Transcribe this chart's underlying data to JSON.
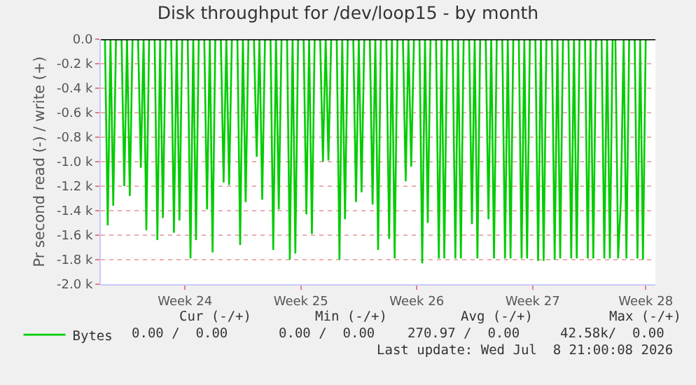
{
  "chart_data": {
    "type": "line",
    "title": "Disk throughput for /dev/loop15 - by month",
    "ylabel": "Pr second read (-) / write (+)",
    "categories": [
      null,
      null,
      null,
      null,
      null,
      null,
      null,
      null,
      null,
      null,
      null,
      null,
      null,
      null,
      null,
      null,
      null,
      null,
      null,
      null,
      null,
      null,
      null,
      null,
      null,
      null,
      null,
      null,
      null,
      null,
      "Week 24",
      null,
      null,
      null,
      null,
      null,
      null,
      null,
      null,
      null,
      null,
      null,
      null,
      null,
      null,
      null,
      null,
      null,
      null,
      null,
      null,
      null,
      null,
      null,
      null,
      null,
      null,
      null,
      null,
      null,
      null,
      null,
      null,
      null,
      null,
      null,
      null,
      null,
      null,
      null,
      null,
      null,
      "Week 25",
      null,
      null,
      null,
      null,
      null,
      null,
      null,
      null,
      null,
      null,
      null,
      null,
      null,
      null,
      null,
      null,
      null,
      null,
      null,
      null,
      null,
      null,
      null,
      null,
      null,
      null,
      null,
      null,
      null,
      null,
      null,
      null,
      null,
      null,
      null,
      null,
      null,
      null,
      null,
      null,
      null,
      "Week 26",
      null,
      null,
      null,
      null,
      null,
      null,
      null,
      null,
      null,
      null,
      null,
      null,
      null,
      null,
      null,
      null,
      null,
      null,
      null,
      null,
      null,
      null,
      null,
      null,
      null,
      null,
      null,
      null,
      null,
      null,
      null,
      null,
      null,
      null,
      null,
      null,
      null,
      null,
      null,
      null,
      null,
      "Week 27",
      null,
      null,
      null,
      null,
      null,
      null,
      null,
      null,
      null,
      null,
      null,
      null,
      null,
      null,
      null,
      null,
      null,
      null,
      null,
      null,
      null,
      null,
      null,
      null,
      null,
      null,
      null,
      null,
      null,
      null,
      null,
      null,
      null,
      null,
      null,
      null,
      null,
      null,
      null,
      null,
      "Week 28",
      null,
      null
    ],
    "ylim": [
      -2000,
      0
    ],
    "yticks": [
      {
        "value": -2000,
        "label": "-2.0 k"
      },
      {
        "value": -1800,
        "label": "-1.8 k"
      },
      {
        "value": -1600,
        "label": "-1.6 k"
      },
      {
        "value": -1400,
        "label": "-1.4 k"
      },
      {
        "value": -1200,
        "label": "-1.2 k"
      },
      {
        "value": -1000,
        "label": "-1.0 k"
      },
      {
        "value": -800,
        "label": "-0.8 k"
      },
      {
        "value": -600,
        "label": "-0.6 k"
      },
      {
        "value": -400,
        "label": "-0.4 k"
      },
      {
        "value": -200,
        "label": "-0.2 k"
      },
      {
        "value": 0,
        "label": "0.0"
      }
    ],
    "grid": "y",
    "legend": "bottom",
    "marker": "none",
    "line_style": "solid",
    "ref_lines": [
      {
        "axis": "y",
        "value": 0,
        "color": "#000000"
      }
    ],
    "series": [
      {
        "name": "Bytes",
        "color": "#00cc00",
        "values": [
          0,
          0,
          -1520,
          0,
          -1360,
          0,
          0,
          0,
          -1200,
          0,
          -1280,
          0,
          0,
          0,
          -1050,
          0,
          -1560,
          0,
          0,
          0,
          -1640,
          0,
          -1460,
          0,
          0,
          0,
          -1580,
          0,
          -1480,
          0,
          0,
          0,
          -1790,
          0,
          -1640,
          0,
          0,
          0,
          -1390,
          0,
          -1740,
          0,
          0,
          0,
          -1170,
          0,
          -1190,
          0,
          0,
          0,
          -1680,
          0,
          -1330,
          0,
          0,
          0,
          -960,
          0,
          -1310,
          0,
          0,
          0,
          -1720,
          0,
          -1390,
          0,
          0,
          0,
          -1800,
          0,
          -1750,
          0,
          0,
          0,
          -1430,
          0,
          -1590,
          0,
          0,
          0,
          -1000,
          0,
          -990,
          0,
          0,
          0,
          -1800,
          0,
          -1470,
          0,
          0,
          0,
          -1330,
          0,
          -1250,
          0,
          0,
          0,
          -1350,
          0,
          -1720,
          0,
          0,
          0,
          -1630,
          0,
          -1790,
          0,
          0,
          0,
          -1160,
          0,
          -1040,
          0,
          0,
          0,
          -1830,
          0,
          -1500,
          0,
          0,
          0,
          -1790,
          0,
          -1790,
          0,
          0,
          0,
          -1790,
          0,
          -1790,
          0,
          0,
          0,
          -1510,
          0,
          -1790,
          0,
          0,
          0,
          -1470,
          0,
          -1790,
          0,
          0,
          0,
          -1790,
          0,
          -1790,
          0,
          0,
          0,
          -1790,
          0,
          -1790,
          0,
          0,
          0,
          -1810,
          0,
          -1810,
          0,
          0,
          0,
          -1800,
          0,
          -1790,
          0,
          0,
          0,
          -1790,
          0,
          -1790,
          0,
          0,
          0,
          -1790,
          0,
          -1790,
          0,
          0,
          0,
          -1790,
          0,
          -1790,
          0,
          0,
          -1790,
          -1310,
          0,
          -1790,
          0,
          0,
          0,
          -1790,
          0,
          -1800,
          0,
          0,
          0
        ]
      }
    ],
    "annotations": [
      "Cur (-/+)",
      "Min (-/+)",
      "Avg (-/+)",
      "Max (-/+)",
      "0.00 /  0.00",
      "0.00 /  0.00",
      "270.97 /  0.00",
      "42.58k/  0.00",
      "Last update: Wed Jul  8 21:00:08 2026"
    ]
  }
}
